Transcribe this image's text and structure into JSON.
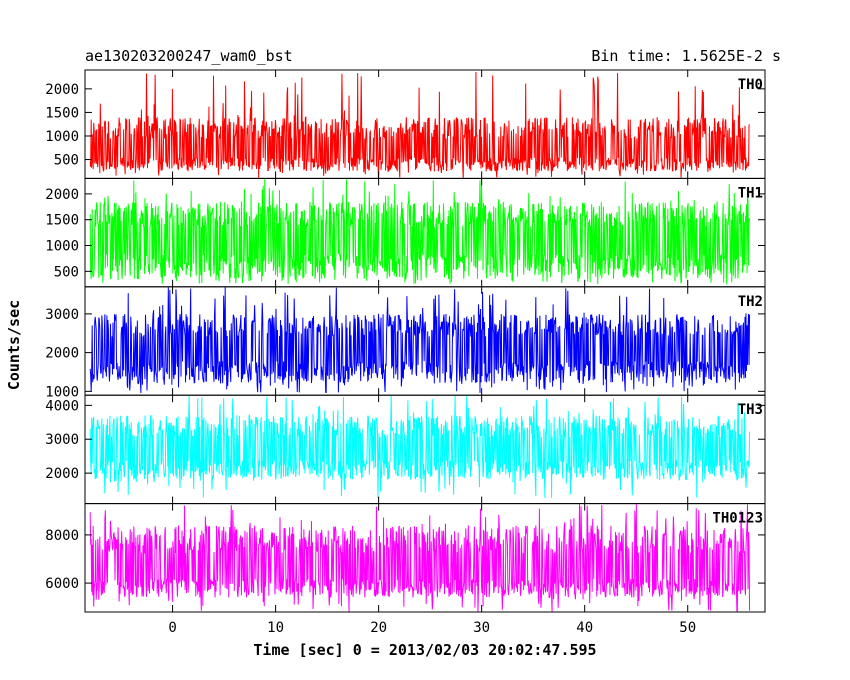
{
  "chart_data": {
    "type": "line",
    "title": "ae130203200247_wam0_bst",
    "bin_time_label": "Bin time: 1.5625E-2 s",
    "xlabel": "Time [sec] 0 = 2013/02/03 20:02:47.595",
    "ylabel": "Counts/sec",
    "xlim": [
      -8.5,
      57.5
    ],
    "data_time_range": [
      -8,
      56
    ],
    "x_ticks": [
      0,
      10,
      20,
      30,
      40,
      50
    ],
    "x_tick_labels": [
      "0",
      "10",
      "20",
      "30",
      "40",
      "50"
    ],
    "panels": [
      {
        "label": "TH0",
        "color": "#ff0000",
        "ylim": [
          100,
          2400
        ],
        "y_ticks": [
          500,
          1000,
          1500,
          2000
        ],
        "y_tick_labels": [
          "500",
          "1000",
          "1500",
          "2000"
        ],
        "baseline": 700,
        "typical_high": 1400,
        "typical_low": 250,
        "spike_max": 2400,
        "dip_min": 100
      },
      {
        "label": "TH1",
        "color": "#00ff00",
        "ylim": [
          200,
          2300
        ],
        "y_ticks": [
          500,
          1000,
          1500,
          2000
        ],
        "y_tick_labels": [
          "500",
          "1000",
          "1500",
          "2000"
        ],
        "baseline": 1100,
        "typical_high": 1850,
        "typical_low": 350,
        "spike_max": 2300,
        "dip_min": 250
      },
      {
        "label": "TH2",
        "color": "#0000ff",
        "ylim": [
          900,
          3700
        ],
        "y_ticks": [
          1000,
          2000,
          3000
        ],
        "y_tick_labels": [
          "1000",
          "2000",
          "3000"
        ],
        "baseline": 2100,
        "typical_high": 3000,
        "typical_low": 1200,
        "spike_max": 3700,
        "dip_min": 950
      },
      {
        "label": "TH3",
        "color": "#00ffff",
        "ylim": [
          1100,
          4300
        ],
        "y_ticks": [
          2000,
          3000,
          4000
        ],
        "y_tick_labels": [
          "2000",
          "3000",
          "4000"
        ],
        "baseline": 2700,
        "typical_high": 3700,
        "typical_low": 1800,
        "spike_max": 4300,
        "dip_min": 1200
      },
      {
        "label": "TH0123",
        "color": "#ff00ff",
        "ylim": [
          4800,
          9300
        ],
        "y_ticks": [
          6000,
          8000
        ],
        "y_tick_labels": [
          "6000",
          "8000"
        ],
        "baseline": 6600,
        "typical_high": 8400,
        "typical_low": 5400,
        "spike_max": 9300,
        "dip_min": 4800
      }
    ]
  }
}
